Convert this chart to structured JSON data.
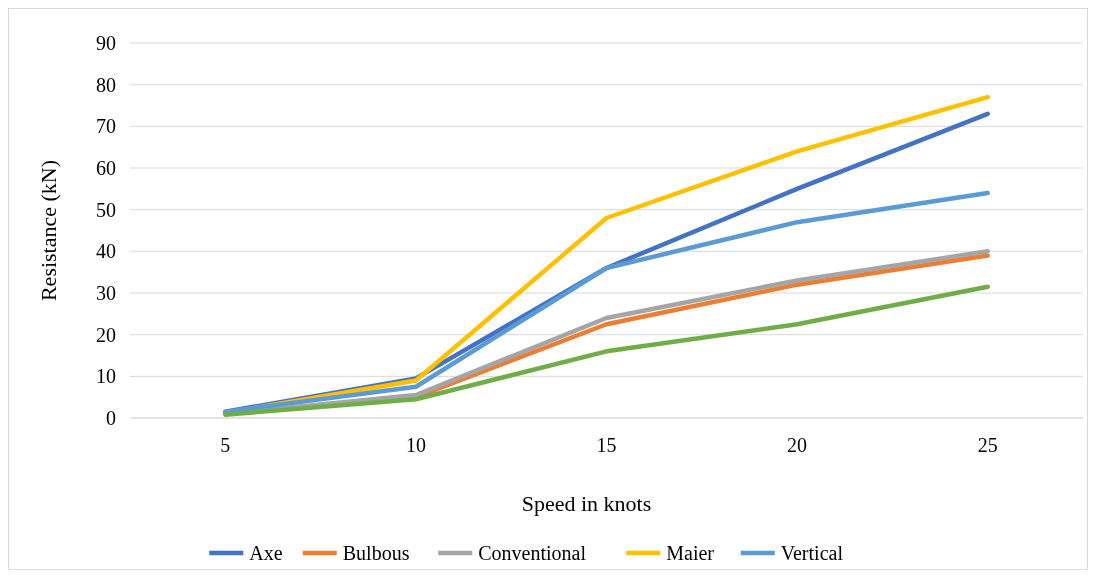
{
  "chart_data": {
    "type": "line",
    "xlabel": "Speed in knots",
    "ylabel": "Resistance (kN)",
    "categories": [
      "5",
      "10",
      "15",
      "20",
      "25"
    ],
    "series": [
      {
        "name": "Axe",
        "color": "#4472c4",
        "values": [
          1.5,
          9.5,
          36,
          55,
          73
        ]
      },
      {
        "name": "Bulbous",
        "color": "#ed7d31",
        "values": [
          1,
          5,
          22.5,
          32,
          39
        ]
      },
      {
        "name": "Conventional",
        "color": "#a5a5a5",
        "values": [
          1,
          5.5,
          24,
          33,
          40
        ]
      },
      {
        "name": "Maier",
        "color": "#ffc000",
        "values": [
          1.2,
          9,
          48,
          64,
          77
        ]
      },
      {
        "name": "Vertical",
        "color": "#5b9bd5",
        "values": [
          1.5,
          7.5,
          36,
          47,
          54
        ]
      },
      {
        "color": "#70ad47",
        "values": [
          0.8,
          4.5,
          16,
          22.5,
          31.5
        ]
      }
    ],
    "ylim": [
      0,
      90
    ],
    "yticks": [
      0,
      10,
      20,
      30,
      40,
      50,
      60,
      70,
      80,
      90
    ],
    "grid": "y",
    "legend": "bottom",
    "line_style": "solid",
    "marker": "none"
  }
}
